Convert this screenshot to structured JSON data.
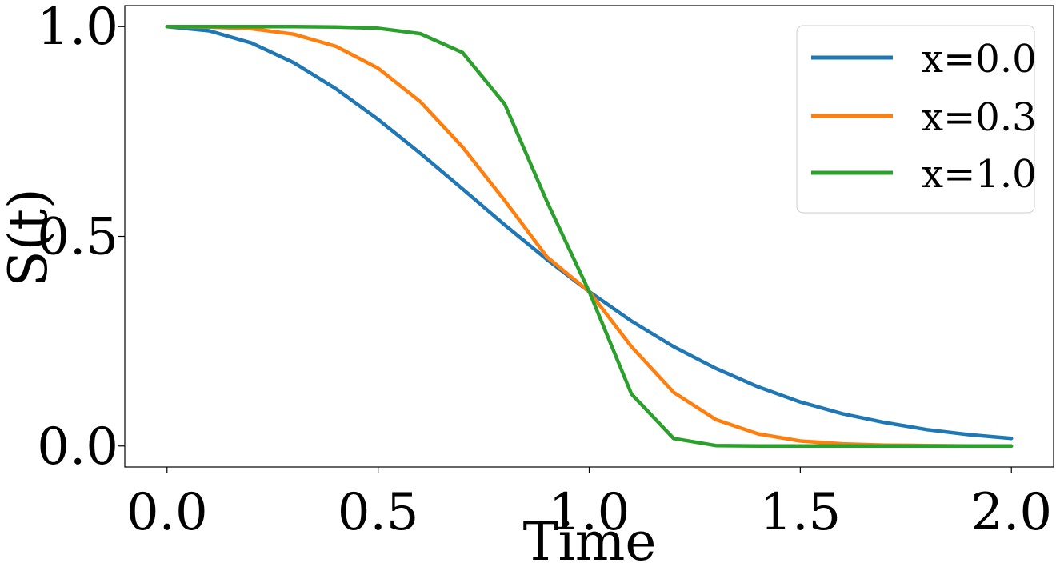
{
  "chart_data": {
    "type": "line",
    "title": "",
    "xlabel": "Time",
    "ylabel": "S(t)",
    "xlim": [
      -0.1,
      2.1
    ],
    "ylim": [
      -0.05,
      1.05
    ],
    "xticks": [
      0.0,
      0.5,
      1.0,
      1.5,
      2.0
    ],
    "xtick_labels": [
      "0.0",
      "0.5",
      "1.0",
      "1.5",
      "2.0"
    ],
    "yticks": [
      0.0,
      0.5,
      1.0
    ],
    "ytick_labels": [
      "0.0",
      "0.5",
      "1.0"
    ],
    "grid": false,
    "legend_position": "top-right",
    "x": [
      0.0,
      0.1,
      0.2,
      0.3,
      0.4,
      0.5,
      0.6,
      0.7,
      0.8,
      0.9,
      1.0,
      1.1,
      1.2,
      1.3,
      1.4,
      1.5,
      1.6,
      1.7,
      1.8,
      1.9,
      2.0
    ],
    "series": [
      {
        "name": "x=0.0",
        "color": "#1f77b4",
        "values": [
          1.0,
          0.99,
          0.961,
          0.914,
          0.852,
          0.779,
          0.698,
          0.613,
          0.527,
          0.445,
          0.368,
          0.298,
          0.237,
          0.185,
          0.141,
          0.105,
          0.077,
          0.056,
          0.039,
          0.027,
          0.018
        ]
      },
      {
        "name": "x=0.3",
        "color": "#ff7f0e",
        "values": [
          1.0,
          0.999,
          0.995,
          0.982,
          0.953,
          0.901,
          0.821,
          0.713,
          0.585,
          0.451,
          0.368,
          0.237,
          0.128,
          0.063,
          0.029,
          0.012,
          0.005,
          0.002,
          0.001,
          0.0,
          0.0
        ]
      },
      {
        "name": "x=1.0",
        "color": "#2ca02c",
        "values": [
          1.0,
          1.0,
          1.0,
          1.0,
          0.999,
          0.996,
          0.983,
          0.938,
          0.815,
          0.583,
          0.368,
          0.124,
          0.018,
          0.001,
          0.0,
          0.0,
          0.0,
          0.0,
          0.0,
          0.0,
          0.0
        ]
      }
    ]
  }
}
